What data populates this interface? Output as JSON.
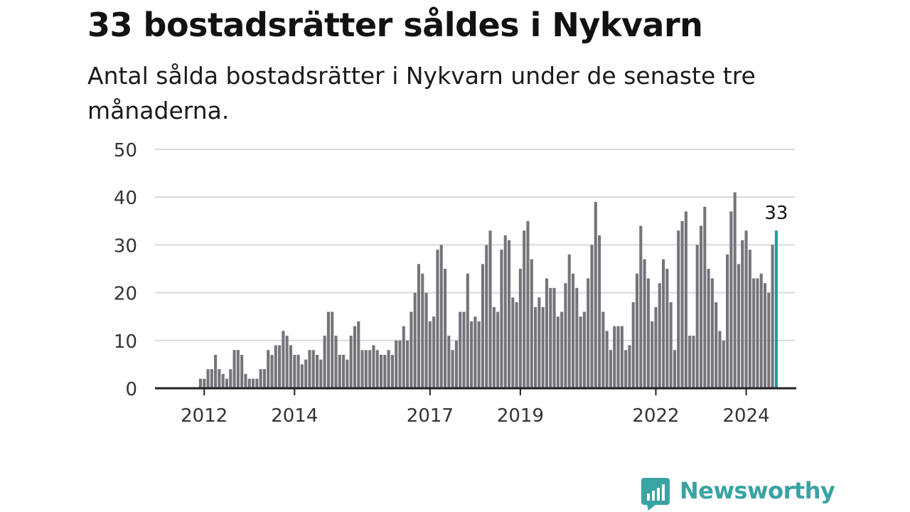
{
  "title": "33 bostadsrätter såldes i Nykvarn",
  "subtitle": "Antal sålda bostadsrätter i Nykvarn under de senaste tre månaderna.",
  "logo_text": "Newsworthy",
  "colors": {
    "bar": "#75747a",
    "highlight": "#1b9e9e",
    "grid": "#d9d9d9",
    "axis": "#222222",
    "logo": "#3aa3a3"
  },
  "chart_data": {
    "type": "bar",
    "title": "33 bostadsrätter såldes i Nykvarn",
    "subtitle": "Antal sålda bostadsrätter i Nykvarn under de senaste tre månaderna.",
    "start_month": "2011-01",
    "xlabel": "",
    "ylabel": "",
    "ylim": [
      0,
      50
    ],
    "yticks": [
      0,
      10,
      20,
      30,
      40,
      50
    ],
    "xtick_labels": [
      "2012",
      "2014",
      "2017",
      "2019",
      "2022",
      "2024"
    ],
    "grid": true,
    "highlight_label": "33",
    "values": [
      0,
      0,
      0,
      0,
      0,
      0,
      0,
      0,
      0,
      0,
      0,
      2,
      2,
      4,
      4,
      7,
      4,
      3,
      2,
      4,
      8,
      8,
      7,
      3,
      2,
      2,
      2,
      4,
      4,
      8,
      7,
      9,
      9,
      12,
      11,
      9,
      7,
      7,
      5,
      6,
      8,
      8,
      7,
      6,
      11,
      16,
      16,
      11,
      7,
      7,
      6,
      11,
      13,
      14,
      8,
      8,
      8,
      9,
      8,
      7,
      7,
      8,
      7,
      10,
      10,
      13,
      10,
      16,
      20,
      26,
      24,
      20,
      14,
      15,
      29,
      30,
      25,
      11,
      8,
      10,
      16,
      16,
      24,
      14,
      15,
      14,
      26,
      30,
      33,
      17,
      16,
      29,
      32,
      31,
      19,
      18,
      25,
      33,
      35,
      27,
      17,
      19,
      17,
      23,
      21,
      21,
      15,
      16,
      22,
      28,
      24,
      21,
      15,
      16,
      23,
      30,
      39,
      32,
      16,
      12,
      8,
      13,
      13,
      13,
      8,
      9,
      18,
      24,
      34,
      27,
      23,
      14,
      17,
      22,
      27,
      25,
      18,
      8,
      33,
      35,
      37,
      11,
      11,
      30,
      34,
      38,
      25,
      23,
      18,
      12,
      10,
      28,
      37,
      41,
      26,
      31,
      33,
      29,
      23,
      23,
      24,
      22,
      20,
      30,
      33
    ]
  }
}
